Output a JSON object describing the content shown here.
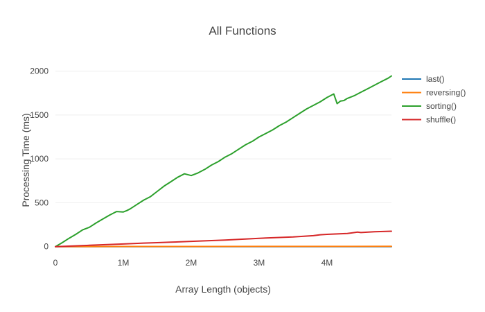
{
  "chart_data": {
    "type": "line",
    "title": "All Functions",
    "xlabel": "Array Length (objects)",
    "ylabel": "Processing Time (ms)",
    "xlim": [
      0,
      4950000
    ],
    "ylim": [
      -50,
      2100
    ],
    "x_ticks": [
      {
        "value": 0,
        "label": "0"
      },
      {
        "value": 1000000,
        "label": "1M"
      },
      {
        "value": 2000000,
        "label": "2M"
      },
      {
        "value": 3000000,
        "label": "3M"
      },
      {
        "value": 4000000,
        "label": "4M"
      }
    ],
    "y_ticks": [
      {
        "value": 0,
        "label": "0"
      },
      {
        "value": 500,
        "label": "500"
      },
      {
        "value": 1000,
        "label": "1000"
      },
      {
        "value": 1500,
        "label": "1500"
      },
      {
        "value": 2000,
        "label": "2000"
      }
    ],
    "grid": true,
    "legend_position": "right",
    "series": [
      {
        "name": "last()",
        "color": "#1f77b4",
        "x": [
          0,
          1000000,
          2000000,
          3000000,
          4000000,
          4950000
        ],
        "y": [
          0,
          0,
          0,
          0,
          0,
          0
        ]
      },
      {
        "name": "reversing()",
        "color": "#ff7f0e",
        "x": [
          0,
          1000000,
          2000000,
          3000000,
          4000000,
          4950000
        ],
        "y": [
          0,
          1,
          1,
          2,
          2,
          3
        ]
      },
      {
        "name": "sorting()",
        "color": "#2ca02c",
        "x": [
          0,
          100000,
          200000,
          300000,
          400000,
          500000,
          600000,
          700000,
          800000,
          900000,
          1000000,
          1050000,
          1100000,
          1200000,
          1300000,
          1400000,
          1500000,
          1600000,
          1700000,
          1800000,
          1900000,
          2000000,
          2050000,
          2100000,
          2200000,
          2300000,
          2400000,
          2500000,
          2600000,
          2700000,
          2800000,
          2900000,
          3000000,
          3100000,
          3200000,
          3300000,
          3400000,
          3500000,
          3600000,
          3700000,
          3800000,
          3900000,
          4000000,
          4100000,
          4150000,
          4200000,
          4250000,
          4300000,
          4400000,
          4500000,
          4600000,
          4700000,
          4800000,
          4900000,
          4950000
        ],
        "y": [
          0,
          45,
          95,
          140,
          190,
          220,
          270,
          315,
          360,
          400,
          395,
          410,
          430,
          480,
          530,
          570,
          630,
          690,
          740,
          790,
          830,
          810,
          825,
          840,
          880,
          930,
          970,
          1020,
          1060,
          1110,
          1160,
          1200,
          1250,
          1290,
          1330,
          1380,
          1420,
          1470,
          1520,
          1570,
          1610,
          1650,
          1700,
          1740,
          1630,
          1660,
          1665,
          1690,
          1720,
          1760,
          1800,
          1840,
          1880,
          1920,
          1945
        ]
      },
      {
        "name": "shuffle()",
        "color": "#d62728",
        "x": [
          0,
          500000,
          1000000,
          1300000,
          1500000,
          1700000,
          2000000,
          2500000,
          2900000,
          3000000,
          3500000,
          3800000,
          3900000,
          4000000,
          4300000,
          4450000,
          4500000,
          4700000,
          4950000
        ],
        "y": [
          0,
          15,
          30,
          40,
          45,
          50,
          60,
          75,
          90,
          95,
          110,
          125,
          135,
          140,
          150,
          165,
          160,
          170,
          175
        ]
      }
    ]
  }
}
